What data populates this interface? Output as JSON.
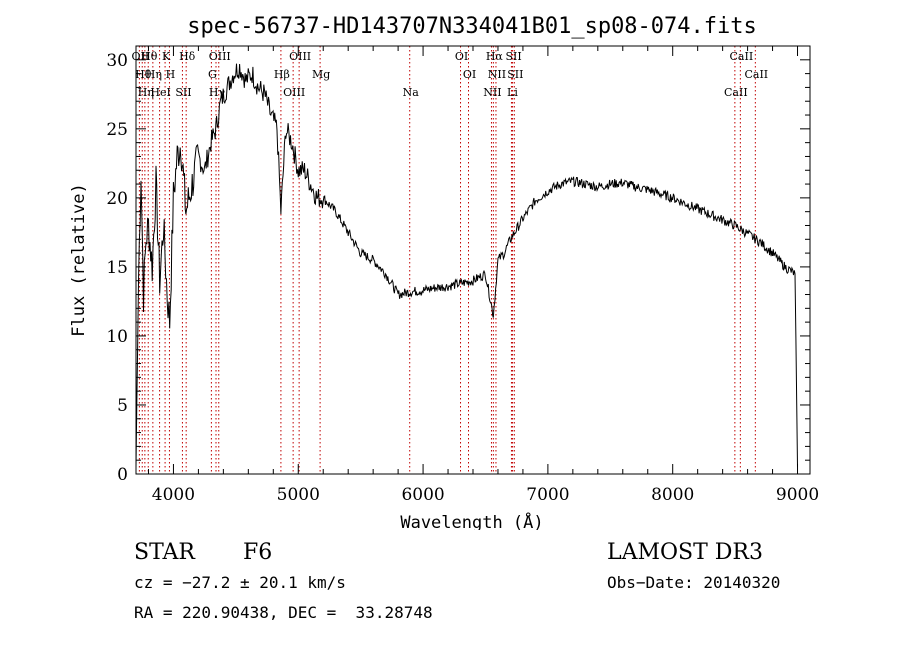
{
  "chart_data": {
    "type": "line",
    "title": "spec-56737-HD143707N334041B01_sp08-074.fits",
    "xlabel": "Wavelength (Å)",
    "ylabel": "Flux (relative)",
    "xlim": [
      3700,
      9100
    ],
    "ylim": [
      0,
      31
    ],
    "xticks": [
      4000,
      5000,
      6000,
      7000,
      8000,
      9000
    ],
    "yticks": [
      0,
      5,
      10,
      15,
      20,
      25,
      30
    ],
    "line_color": "#000000",
    "marker_color": "#c00000",
    "series": [
      {
        "name": "flux",
        "x": [
          3700,
          3720,
          3740,
          3760,
          3780,
          3800,
          3830,
          3860,
          3890,
          3920,
          3950,
          3970,
          4000,
          4030,
          4060,
          4100,
          4150,
          4200,
          4250,
          4300,
          4340,
          4380,
          4430,
          4480,
          4530,
          4580,
          4630,
          4680,
          4730,
          4780,
          4830,
          4861,
          4900,
          4950,
          5000,
          5050,
          5100,
          5150,
          5200,
          5300,
          5400,
          5500,
          5600,
          5700,
          5800,
          5900,
          6000,
          6100,
          6200,
          6300,
          6400,
          6500,
          6563,
          6600,
          6650,
          6700,
          6800,
          6900,
          7000,
          7100,
          7200,
          7300,
          7400,
          7500,
          7600,
          7700,
          7800,
          7900,
          8000,
          8100,
          8200,
          8300,
          8400,
          8500,
          8600,
          8700,
          8800,
          8900,
          8980,
          9000
        ],
        "y": [
          0.5,
          14,
          22,
          13,
          17,
          18,
          15,
          21,
          14,
          18,
          13,
          11,
          20,
          23,
          24,
          19,
          21,
          23,
          22,
          24,
          25,
          27,
          28,
          29,
          29.5,
          28.5,
          29,
          28,
          27.5,
          26,
          25,
          19,
          25,
          24,
          22,
          22,
          21,
          20,
          20,
          19,
          17.5,
          16,
          15.5,
          14.5,
          13,
          13.2,
          13.3,
          13.5,
          13.6,
          13.8,
          14,
          14.5,
          11.5,
          15.5,
          16,
          17,
          18.5,
          19.8,
          20.5,
          21,
          21.2,
          21,
          20.8,
          21,
          21.1,
          20.8,
          20.6,
          20.3,
          20,
          19.6,
          19.2,
          18.8,
          18.4,
          18,
          17.4,
          16.8,
          16,
          15,
          14.5,
          0.5
        ]
      }
    ],
    "lines": [
      {
        "wl": 3727,
        "label": "OII"
      },
      {
        "wl": 3750,
        "label": "Hθ"
      },
      {
        "wl": 3771,
        "label": "Hη"
      },
      {
        "wl": 3798,
        "label": "Hθ"
      },
      {
        "wl": 3835,
        "label": "Hη"
      },
      {
        "wl": 3889,
        "label": "HeI"
      },
      {
        "wl": 3933,
        "label": "K"
      },
      {
        "wl": 3968,
        "label": "H"
      },
      {
        "wl": 4072,
        "label": "SII"
      },
      {
        "wl": 4102,
        "label": "Hδ"
      },
      {
        "wl": 4304,
        "label": "G"
      },
      {
        "wl": 4341,
        "label": "Hγ"
      },
      {
        "wl": 4363,
        "label": "OIII"
      },
      {
        "wl": 4861,
        "label": "Hβ"
      },
      {
        "wl": 4959,
        "label": "OIII"
      },
      {
        "wl": 5007,
        "label": "OIII"
      },
      {
        "wl": 5175,
        "label": "Mg"
      },
      {
        "wl": 5893,
        "label": "Na"
      },
      {
        "wl": 6300,
        "label": "OI"
      },
      {
        "wl": 6364,
        "label": "OI"
      },
      {
        "wl": 6548,
        "label": "NII"
      },
      {
        "wl": 6563,
        "label": "Hα"
      },
      {
        "wl": 6584,
        "label": "NII"
      },
      {
        "wl": 6708,
        "label": "Li"
      },
      {
        "wl": 6717,
        "label": "SII"
      },
      {
        "wl": 6731,
        "label": "SII"
      },
      {
        "wl": 8498,
        "label": "CaII"
      },
      {
        "wl": 8542,
        "label": "CaII"
      },
      {
        "wl": 8662,
        "label": "CaII"
      }
    ]
  },
  "info": {
    "class": "STAR",
    "subclass": "F6",
    "survey": "LAMOST DR3",
    "cz": "cz = −27.2 ± 20.1 km/s",
    "obs_date": "Obs−Date: 20140320",
    "coords": "RA = 220.90438, DEC =  33.28748"
  }
}
